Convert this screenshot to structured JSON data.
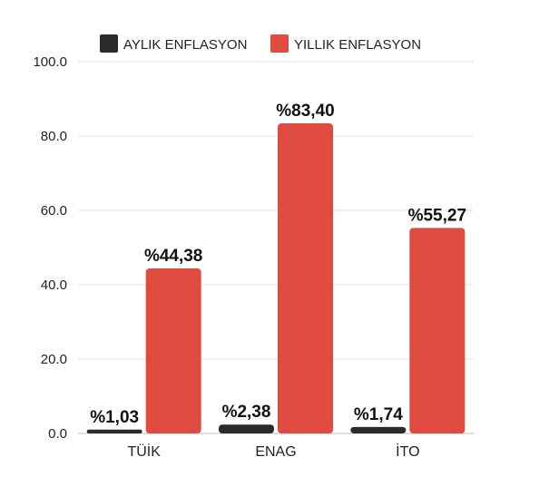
{
  "chart_data": {
    "type": "bar",
    "categories": [
      "TÜİK",
      "ENAG",
      "İTO"
    ],
    "series": [
      {
        "name": "AYLIK ENFLASYON",
        "color": "#2b2b2b",
        "values": [
          1.03,
          2.38,
          1.74
        ],
        "labels": [
          "%1,03",
          "%2,38",
          "%1,74"
        ]
      },
      {
        "name": "YILLIK ENFLASYON",
        "color": "#e04b40",
        "values": [
          44.38,
          83.4,
          55.27
        ],
        "labels": [
          "%44,38",
          "%83,40",
          "%55,27"
        ]
      }
    ],
    "yticks": [
      "0.0",
      "20.0",
      "40.0",
      "60.0",
      "80.0",
      "100.0"
    ],
    "ylim": [
      0,
      100
    ],
    "grid": true,
    "legend": "top-center",
    "title": "",
    "xlabel": "",
    "ylabel": ""
  }
}
